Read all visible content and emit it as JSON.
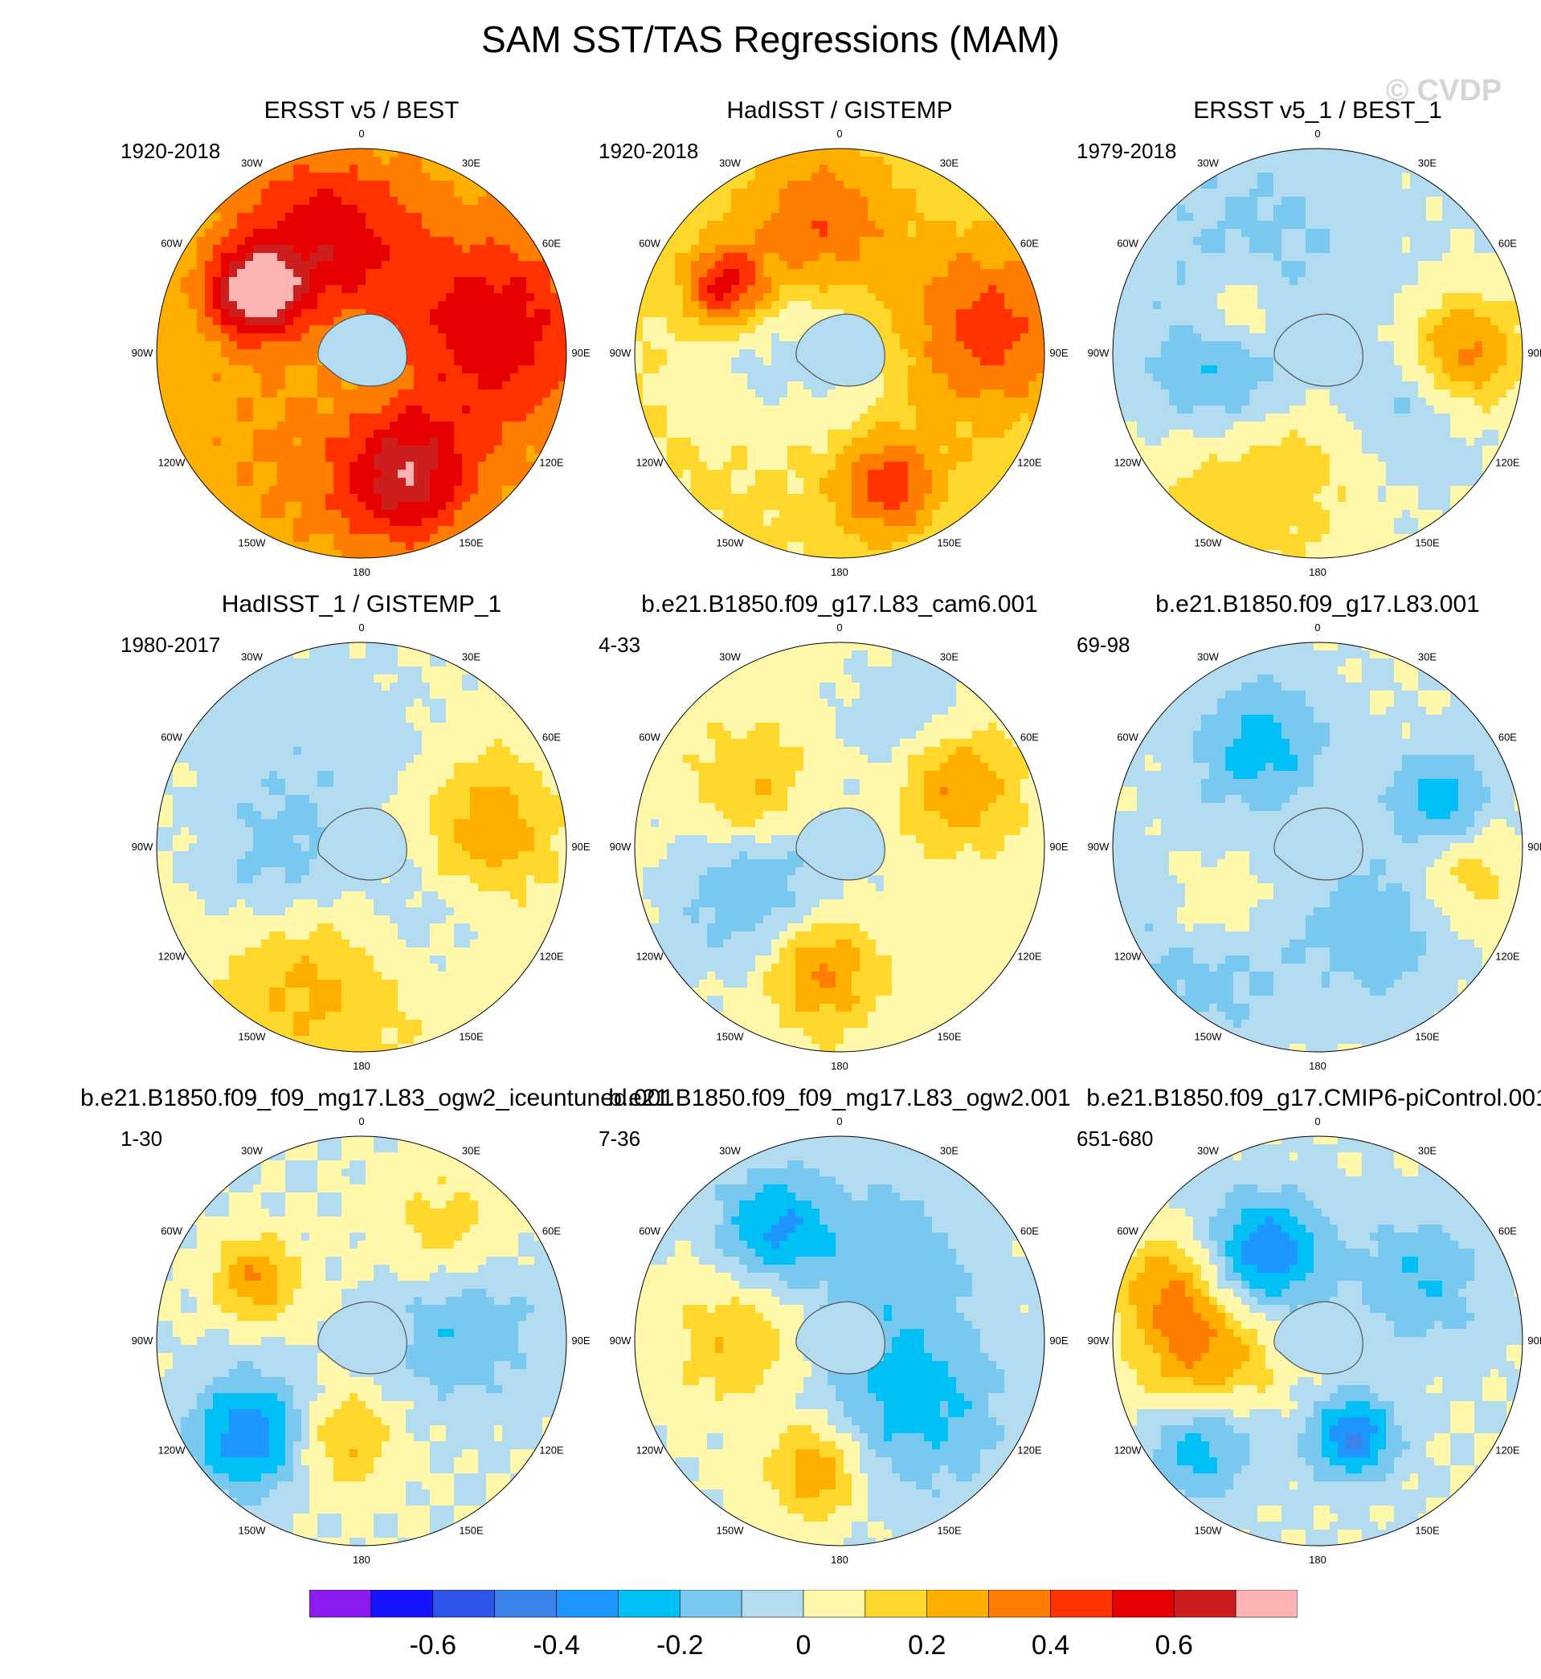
{
  "title": "SAM SST/TAS Regressions (MAM)",
  "watermark": "© CVDP",
  "colors": {
    "levels": [
      "#8b1bee",
      "#1414ff",
      "#2d55e8",
      "#3c82eb",
      "#1e96ff",
      "#00c0f5",
      "#78c8f0",
      "#b4dcf0",
      "#fff8aa",
      "#ffd72d",
      "#ffaf00",
      "#ff7d00",
      "#ff3200",
      "#e60000",
      "#cd1e1e",
      "#ffb4b4"
    ],
    "land": "#ffffff",
    "coast": "#555555"
  },
  "chart_data": {
    "type": "heatmap",
    "projection": "south-polar-stereographic",
    "longitude_labels": [
      "0",
      "30E",
      "60E",
      "90E",
      "120E",
      "150E",
      "180",
      "150W",
      "120W",
      "90W",
      "60W",
      "30W"
    ],
    "colorbar": {
      "levels": [
        -0.7,
        -0.6,
        -0.5,
        -0.4,
        -0.3,
        -0.2,
        -0.1,
        0,
        0.1,
        0.2,
        0.3,
        0.4,
        0.5,
        0.6,
        0.7
      ],
      "tick_labels": [
        "-0.6",
        "-0.4",
        "-0.2",
        "0",
        "0.2",
        "0.4",
        "0.6"
      ],
      "tick_values": [
        -0.6,
        -0.4,
        -0.2,
        0,
        0.2,
        0.4,
        0.6
      ]
    },
    "panels": [
      {
        "title": "ERSST v5 / BEST",
        "period": "1920-2018",
        "base": 0.22,
        "features": [
          {
            "lon": -20,
            "lat": -50,
            "value": 0.35,
            "spread": 22
          },
          {
            "lon": -60,
            "lat": -48,
            "value": 0.55,
            "spread": 10
          },
          {
            "lon": 80,
            "lat": -45,
            "value": 0.35,
            "spread": 25
          },
          {
            "lon": 160,
            "lat": -45,
            "value": 0.4,
            "spread": 16
          },
          {
            "lon": -150,
            "lat": -55,
            "value": 0.1,
            "spread": 30
          },
          {
            "lon": 0,
            "lat": -90,
            "value": -0.1,
            "spread": 20
          }
        ]
      },
      {
        "title": "HadISST / GISTEMP",
        "period": "1920-2018",
        "base": 0.12,
        "features": [
          {
            "lon": 80,
            "lat": -40,
            "value": 0.32,
            "spread": 22
          },
          {
            "lon": -60,
            "lat": -45,
            "value": 0.45,
            "spread": 10
          },
          {
            "lon": -10,
            "lat": -45,
            "value": 0.28,
            "spread": 18
          },
          {
            "lon": 160,
            "lat": -42,
            "value": 0.35,
            "spread": 12
          },
          {
            "lon": -90,
            "lat": -60,
            "value": -0.12,
            "spread": 20
          },
          {
            "lon": 0,
            "lat": -90,
            "value": -0.1,
            "spread": 20
          }
        ]
      },
      {
        "title": "ERSST v5_1 / BEST_1",
        "period": "1979-2018",
        "base": 0.0,
        "features": [
          {
            "lon": 90,
            "lat": -40,
            "value": 0.35,
            "spread": 14
          },
          {
            "lon": -150,
            "lat": -45,
            "value": 0.22,
            "spread": 25
          },
          {
            "lon": -110,
            "lat": -55,
            "value": -0.25,
            "spread": 18
          },
          {
            "lon": -30,
            "lat": -48,
            "value": -0.12,
            "spread": 30
          },
          {
            "lon": -60,
            "lat": -60,
            "value": 0.2,
            "spread": 10
          },
          {
            "lon": 120,
            "lat": -55,
            "value": -0.15,
            "spread": 16
          }
        ]
      },
      {
        "title": "HadISST_1 / GISTEMP_1",
        "period": "1980-2017",
        "base": 0.03,
        "features": [
          {
            "lon": 80,
            "lat": -45,
            "value": 0.25,
            "spread": 16
          },
          {
            "lon": -160,
            "lat": -45,
            "value": 0.22,
            "spread": 25
          },
          {
            "lon": -110,
            "lat": -60,
            "value": -0.18,
            "spread": 18
          },
          {
            "lon": -30,
            "lat": -55,
            "value": -0.1,
            "spread": 30
          },
          {
            "lon": 150,
            "lat": -60,
            "value": -0.12,
            "spread": 16
          }
        ]
      },
      {
        "title": "b.e21.B1850.f09_g17.L83_cam6.001",
        "period": "4-33",
        "base": 0.05,
        "features": [
          {
            "lon": 60,
            "lat": -45,
            "value": 0.3,
            "spread": 14
          },
          {
            "lon": -170,
            "lat": -48,
            "value": 0.32,
            "spread": 14
          },
          {
            "lon": -120,
            "lat": -58,
            "value": -0.25,
            "spread": 22
          },
          {
            "lon": 30,
            "lat": -40,
            "value": -0.15,
            "spread": 18
          },
          {
            "lon": -60,
            "lat": -55,
            "value": 0.22,
            "spread": 14
          }
        ]
      },
      {
        "title": "b.e21.B1850.f09_g17.L83.001",
        "period": "69-98",
        "base": 0.0,
        "features": [
          {
            "lon": 70,
            "lat": -45,
            "value": -0.28,
            "spread": 12
          },
          {
            "lon": -30,
            "lat": -50,
            "value": -0.25,
            "spread": 16
          },
          {
            "lon": -120,
            "lat": -48,
            "value": 0.22,
            "spread": 14
          },
          {
            "lon": -130,
            "lat": -38,
            "value": -0.2,
            "spread": 22
          },
          {
            "lon": 140,
            "lat": -55,
            "value": -0.18,
            "spread": 18
          },
          {
            "lon": 100,
            "lat": -40,
            "value": 0.18,
            "spread": 14
          }
        ]
      },
      {
        "title": "b.e21.B1850.f09_f09_mg17.L83_ogw2_iceuntuned.001",
        "period": "1-30",
        "base": 0.0,
        "features": [
          {
            "lon": -130,
            "lat": -40,
            "value": -0.38,
            "spread": 14
          },
          {
            "lon": -170,
            "lat": -55,
            "value": 0.22,
            "spread": 12
          },
          {
            "lon": -60,
            "lat": -48,
            "value": 0.3,
            "spread": 10
          },
          {
            "lon": 80,
            "lat": -55,
            "value": -0.22,
            "spread": 18
          },
          {
            "lon": 40,
            "lat": -45,
            "value": 0.18,
            "spread": 16
          }
        ]
      },
      {
        "title": "b.e21.B1850.f09_f09_mg17.L83_ogw2.001",
        "period": "7-36",
        "base": 0.0,
        "features": [
          {
            "lon": -30,
            "lat": -45,
            "value": -0.3,
            "spread": 14
          },
          {
            "lon": -170,
            "lat": -45,
            "value": 0.3,
            "spread": 12
          },
          {
            "lon": 130,
            "lat": -58,
            "value": -0.25,
            "spread": 22
          },
          {
            "lon": -90,
            "lat": -55,
            "value": 0.2,
            "spread": 16
          },
          {
            "lon": 30,
            "lat": -55,
            "value": -0.15,
            "spread": 20
          }
        ]
      },
      {
        "title": "b.e21.B1850.f09_g17.CMIP6-piControl.001",
        "period": "651-680",
        "base": 0.0,
        "features": [
          {
            "lon": -100,
            "lat": -50,
            "value": 0.35,
            "spread": 16
          },
          {
            "lon": -130,
            "lat": -38,
            "value": -0.3,
            "spread": 14
          },
          {
            "lon": -30,
            "lat": -55,
            "value": -0.38,
            "spread": 14
          },
          {
            "lon": 160,
            "lat": -55,
            "value": -0.4,
            "spread": 10
          },
          {
            "lon": 60,
            "lat": -50,
            "value": -0.2,
            "spread": 16
          },
          {
            "lon": -70,
            "lat": -35,
            "value": 0.25,
            "spread": 12
          }
        ]
      }
    ]
  }
}
